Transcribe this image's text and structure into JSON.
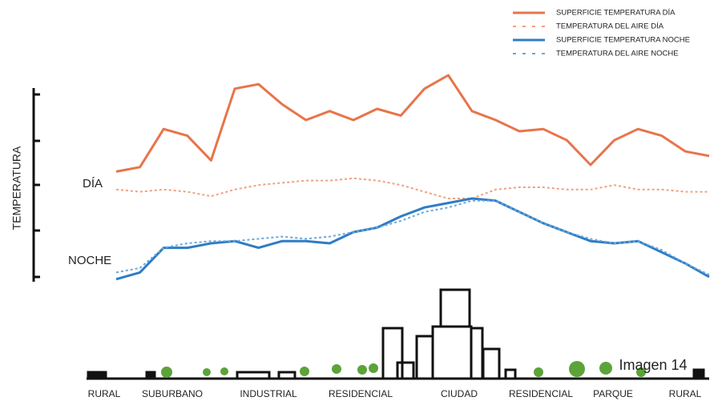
{
  "chart_data": {
    "type": "line",
    "ylabel": "TEMPERATURA",
    "annotations": {
      "day": "DÍA",
      "night": "NOCHE"
    },
    "zones": [
      "RURAL",
      "SUBURBANO",
      "INDUSTRIAL",
      "RESIDENCIAL",
      "CIUDAD",
      "RESIDENCIAL",
      "PARQUE",
      "RURAL"
    ],
    "watermark": "Imagen 14",
    "xlim": [
      0,
      100
    ],
    "ylim": [
      0,
      100
    ],
    "x": [
      0,
      4,
      8,
      12,
      16,
      20,
      24,
      28,
      32,
      36,
      40,
      44,
      48,
      52,
      56,
      60,
      64,
      68,
      72,
      76,
      80,
      84,
      88,
      92,
      96,
      100
    ],
    "series": [
      {
        "name": "SUPERFICIE TEMPERATURA DÍA",
        "color": "#e8744a",
        "dashed": false,
        "values": [
          52,
          54,
          71,
          68,
          57,
          89,
          91,
          82,
          75,
          79,
          75,
          80,
          77,
          89,
          95,
          79,
          75,
          70,
          71,
          66,
          55,
          66,
          71,
          68,
          61,
          59
        ]
      },
      {
        "name": "TEMPERATURA DEL AIRE DÍA",
        "color": "#f0a080",
        "dashed": true,
        "values": [
          44,
          43,
          44,
          43,
          41,
          44,
          46,
          47,
          48,
          48,
          49,
          48,
          46,
          43,
          40,
          40,
          44,
          45,
          45,
          44,
          44,
          46,
          44,
          44,
          43,
          43
        ]
      },
      {
        "name": "SUPERFICIE TEMPERATURA NOCHE",
        "color": "#2f7cc4",
        "dashed": false,
        "values": [
          4,
          7,
          18,
          18,
          20,
          21,
          18,
          21,
          21,
          20,
          25,
          27,
          32,
          36,
          38,
          40,
          39,
          34,
          29,
          25,
          21,
          20,
          21,
          16,
          11,
          5
        ]
      },
      {
        "name": "TEMPERATURA DEL AIRE NOCHE",
        "color": "#6aa6da",
        "dashed": true,
        "values": [
          7,
          9,
          18,
          20,
          21,
          21,
          22,
          23,
          22,
          23,
          25,
          27,
          30,
          34,
          36,
          39,
          39,
          34,
          29,
          25,
          22,
          20,
          21,
          17,
          11,
          6
        ]
      }
    ]
  }
}
